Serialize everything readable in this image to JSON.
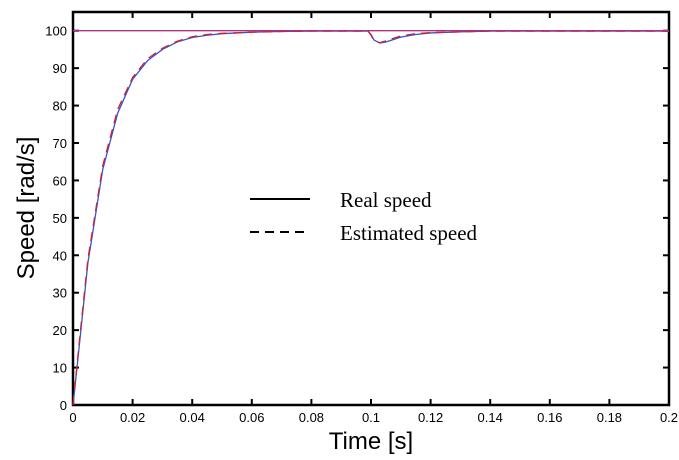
{
  "chart_data": {
    "type": "line",
    "title": "",
    "xlabel": "Time [s]",
    "ylabel": "Speed [rad/s]",
    "xlim": [
      0,
      0.2
    ],
    "ylim": [
      0,
      105
    ],
    "x_ticks": [
      0,
      0.02,
      0.04,
      0.06,
      0.08,
      0.1,
      0.12,
      0.14,
      0.16,
      0.18,
      0.2
    ],
    "x_tick_labels": [
      "0",
      "0.02",
      "0.04",
      "0.06",
      "0.08",
      "0.1",
      "0.12",
      "0.14",
      "0.16",
      "0.18",
      "0.2"
    ],
    "y_ticks": [
      0,
      10,
      20,
      30,
      40,
      50,
      60,
      70,
      80,
      90,
      100
    ],
    "y_tick_labels": [
      "0",
      "10",
      "20",
      "30",
      "40",
      "50",
      "60",
      "70",
      "80",
      "90",
      "100"
    ],
    "grid": false,
    "legend_position": "center",
    "legend": [
      {
        "label": "Real speed",
        "style": "solid"
      },
      {
        "label": "Estimated speed",
        "style": "dashed"
      }
    ],
    "colors": {
      "real": "#3355cc",
      "estimated": "#cc2233",
      "reference": "#b03080"
    },
    "series": [
      {
        "name": "Real speed",
        "x": [
          0,
          0.002,
          0.005,
          0.01,
          0.015,
          0.02,
          0.025,
          0.03,
          0.035,
          0.04,
          0.045,
          0.05,
          0.06,
          0.07,
          0.08,
          0.09,
          0.099,
          0.1,
          0.101,
          0.103,
          0.105,
          0.11,
          0.115,
          0.12,
          0.13,
          0.14,
          0.15,
          0.16,
          0.17,
          0.18,
          0.19,
          0.2
        ],
        "y": [
          0,
          15,
          38,
          63,
          78,
          87,
          92,
          95,
          97,
          98.2,
          98.8,
          99.2,
          99.6,
          99.8,
          99.9,
          99.9,
          99.9,
          99,
          97.5,
          96.7,
          97,
          98.3,
          99,
          99.4,
          99.7,
          99.9,
          99.9,
          99.9,
          99.9,
          99.9,
          99.9,
          99.9
        ]
      },
      {
        "name": "Estimated speed",
        "x": [
          0,
          0.002,
          0.005,
          0.01,
          0.015,
          0.02,
          0.025,
          0.03,
          0.035,
          0.04,
          0.045,
          0.05,
          0.06,
          0.07,
          0.08,
          0.09,
          0.099,
          0.1,
          0.101,
          0.103,
          0.105,
          0.11,
          0.115,
          0.12,
          0.13,
          0.14,
          0.15,
          0.16,
          0.17,
          0.18,
          0.19,
          0.2
        ],
        "y": [
          0,
          16,
          39,
          64,
          79,
          87.5,
          92.5,
          95.3,
          97.2,
          98.4,
          99,
          99.3,
          99.6,
          99.8,
          99.9,
          99.9,
          99.9,
          98.8,
          97.3,
          96.8,
          97.3,
          98.6,
          99.2,
          99.5,
          99.7,
          99.9,
          99.9,
          99.9,
          99.9,
          99.9,
          99.9,
          99.9
        ]
      },
      {
        "name": "",
        "x": [
          0,
          0.2
        ],
        "y": [
          100,
          100
        ]
      }
    ]
  }
}
